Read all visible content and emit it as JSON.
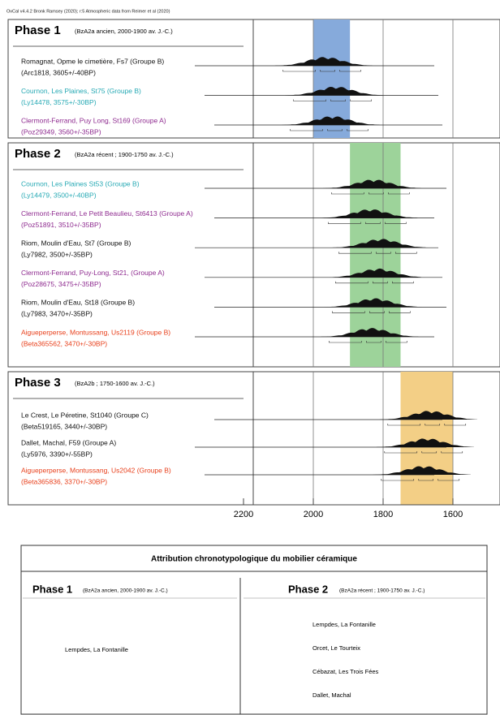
{
  "caption": "OxCal v4.4.2 Bronk Ramsey (2020); r:5 Atmospheric data from Reimer et al (2020)",
  "axis": {
    "xlim": [
      2200,
      1480
    ],
    "xticks": [
      2200,
      2000,
      1800,
      1600
    ]
  },
  "phases": [
    {
      "title": "Phase 1",
      "subtitle": "(BzA2a ancien, 2000-1900 av. J.-C.)",
      "band": [
        2000,
        1895
      ],
      "color": "#86aadb",
      "samples": [
        {
          "name": "Romagnat, Opme le cimetière, Fs7 (Groupe B)",
          "lab": "(Arc1818, 3605+/-40BP)",
          "color": "#111111"
        },
        {
          "name": "Cournon, Les Plaines, St75 (Groupe B)",
          "lab": "(Ly14478, 3575+/-30BP)",
          "color": "#26a9b4"
        },
        {
          "name": "Clermont-Ferrand, Puy Long, St169 (Groupe A)",
          "lab": "(Poz29349, 3560+/-35BP)",
          "color": "#8e2a8f"
        }
      ]
    },
    {
      "title": "Phase 2",
      "subtitle": "(BzA2a récent ; 1900-1750 av. J.-C.)",
      "band": [
        1895,
        1750
      ],
      "color": "#9dd39a",
      "samples": [
        {
          "name": "Cournon, Les Plaines St53 (Groupe B)",
          "lab": "(Ly14479, 3500+/-40BP)",
          "color": "#26a9b4"
        },
        {
          "name": "Clermont-Ferrand, Le Petit Beaulieu, St6413 (Groupe A)",
          "lab": "(Poz51891, 3510+/-35BP)",
          "color": "#8e2a8f"
        },
        {
          "name": "Riom, Moulin d'Eau, St7 (Groupe B)",
          "lab": "(Ly7982, 3500+/-35BP)",
          "color": "#111111"
        },
        {
          "name": "Clermont-Ferrand, Puy-Long, St21, (Groupe A)",
          "lab": "(Poz28675, 3475+/-35BP)",
          "color": "#8e2a8f"
        },
        {
          "name": "Riom, Moulin d'Eau, St18 (Groupe B)",
          "lab": "(Ly7983, 3470+/-35BP)",
          "color": "#111111"
        },
        {
          "name": "Aigueperperse, Montussang, Us2119 (Groupe B)",
          "lab": "(Beta365562, 3470+/-30BP)",
          "color": "#e8401c"
        }
      ]
    },
    {
      "title": "Phase 3",
      "subtitle": "(BzA2b ; 1750-1600 av. J.-C.)",
      "band": [
        1750,
        1600
      ],
      "color": "#f3cf86",
      "samples": [
        {
          "name": "Le Crest, Le Péretine, St1040 (Groupe C)",
          "lab": "(Beta519165, 3440+/-30BP)",
          "color": "#111111"
        },
        {
          "name": "Dallet, Machal, F59 (Groupe A)",
          "lab": "(Ly5976, 3390+/-55BP)",
          "color": "#111111"
        },
        {
          "name": "Aigueperperse, Montussang, Us2042 (Groupe B)",
          "lab": "(Beta365836, 3370+/-30BP)",
          "color": "#e8401c"
        }
      ]
    }
  ],
  "table": {
    "title": "Attribution chronotypologique du mobilier céramique",
    "columns": [
      {
        "title": "Phase 1",
        "subtitle": "(BzA2a ancien, 2000-1900 av. J.-C.)",
        "items": [
          "Lempdes, La Fontanille"
        ]
      },
      {
        "title": "Phase 2",
        "subtitle": "(BzA2a récent ; 1900-1750 av. J.-C.)",
        "items": [
          "Lempdes, La Fontanille",
          "Orcet, Le Tourteix",
          "Cébazat, Les Trois Fées",
          "Dallet, Machal"
        ]
      }
    ]
  }
}
